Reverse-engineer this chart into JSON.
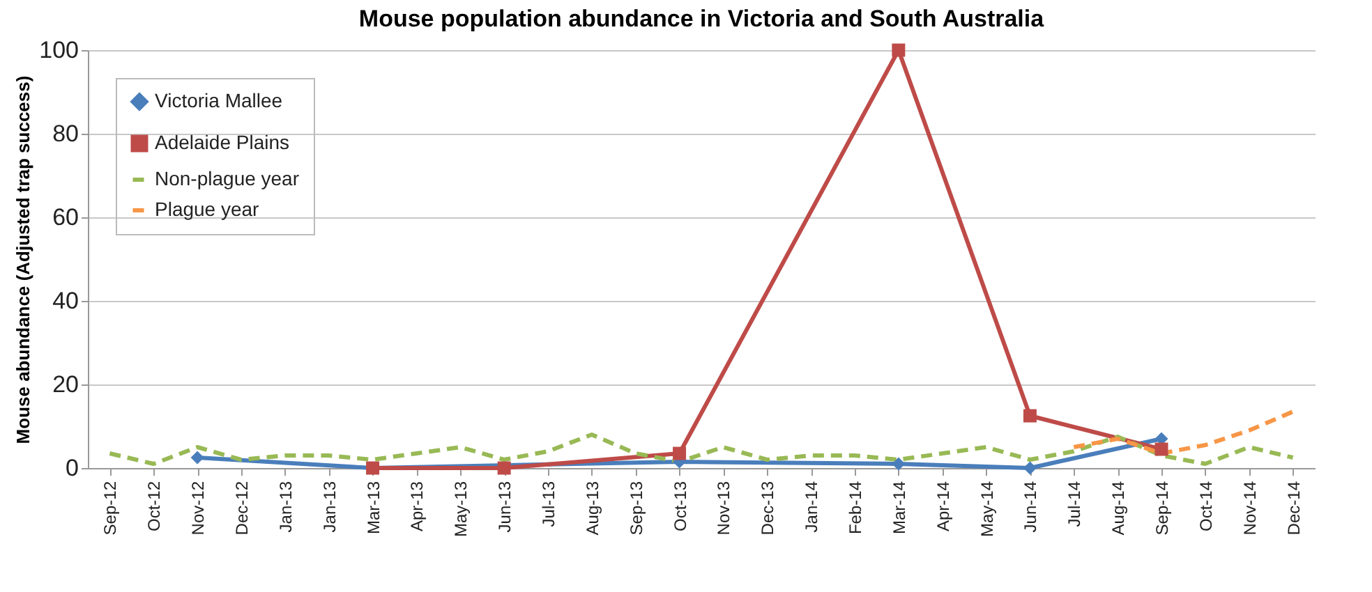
{
  "chart_data": {
    "type": "line",
    "title": "Mouse population abundance in Victoria and South Australia",
    "ylabel": "Mouse abundance (Adjusted trap success)",
    "categories": [
      "Sep-12",
      "Oct-12",
      "Nov-12",
      "Dec-12",
      "Jan-13",
      "Jan-13",
      "Mar-13",
      "Apr-13",
      "May-13",
      "Jun-13",
      "Jul-13",
      "Aug-13",
      "Sep-13",
      "Oct-13",
      "Nov-13",
      "Dec-13",
      "Jan-14",
      "Feb-14",
      "Mar-14",
      "Apr-14",
      "May-14",
      "Jun-14",
      "Jul-14",
      "Aug-14",
      "Sep-14",
      "Oct-14",
      "Nov-14",
      "Dec-14"
    ],
    "series": [
      {
        "name": "Victoria Mallee",
        "color": "#4a7ebb",
        "marker": "diamond",
        "line_style": "solid",
        "values": [
          null,
          null,
          2.5,
          null,
          null,
          null,
          0,
          null,
          null,
          null,
          null,
          null,
          null,
          1.5,
          null,
          null,
          null,
          null,
          1,
          null,
          null,
          0,
          null,
          null,
          7,
          null,
          null,
          null
        ]
      },
      {
        "name": "Adelaide Plains",
        "color": "#be4b48",
        "marker": "square",
        "line_style": "solid",
        "values": [
          null,
          null,
          null,
          null,
          null,
          null,
          0,
          null,
          null,
          0,
          null,
          null,
          null,
          3.5,
          null,
          null,
          null,
          null,
          100,
          null,
          null,
          12.5,
          null,
          null,
          4.5,
          null,
          null,
          null
        ]
      },
      {
        "name": "Non-plague year",
        "color": "#98b954",
        "marker": "none",
        "line_style": "dashed",
        "values": [
          3.5,
          1,
          5,
          2,
          3,
          3,
          2,
          3.5,
          5,
          2,
          4,
          8,
          3.5,
          1.5,
          5,
          2,
          3,
          3,
          2,
          3.5,
          5,
          2,
          4,
          7.5,
          3,
          1,
          5,
          2.5
        ]
      },
      {
        "name": "Plague year",
        "color": "#f79646",
        "marker": "none",
        "line_style": "dashed",
        "values": [
          null,
          null,
          null,
          null,
          null,
          null,
          null,
          null,
          null,
          null,
          null,
          null,
          null,
          null,
          null,
          null,
          null,
          null,
          null,
          null,
          null,
          null,
          5,
          7,
          3.5,
          5.5,
          9,
          13.5
        ]
      }
    ],
    "ylim": [
      0,
      100
    ],
    "yticks": [
      0,
      20,
      40,
      60,
      80,
      100
    ],
    "grid": "y",
    "legend": "top left"
  }
}
